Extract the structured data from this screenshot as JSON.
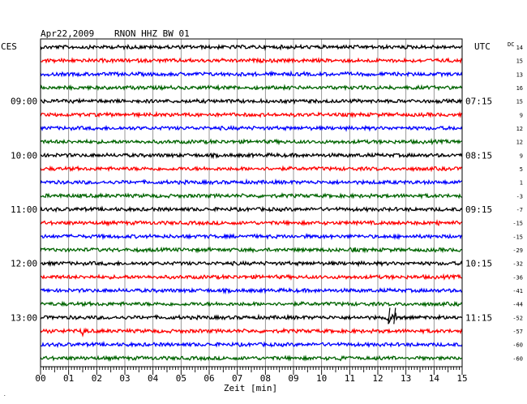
{
  "header": {
    "date": "Apr22,2009",
    "station": "RNON HHZ BW 01",
    "left_tz": "CES",
    "right_tz": "UTC",
    "dc_label": "DC"
  },
  "chart_data": {
    "type": "seismogram",
    "xlabel": "Zeit [min]",
    "xlim": [
      0,
      15
    ],
    "x_ticks": [
      "00",
      "01",
      "02",
      "03",
      "04",
      "05",
      "06",
      "07",
      "08",
      "09",
      "10",
      "11",
      "12",
      "13",
      "14",
      "15"
    ],
    "line_count": 24,
    "line_colors": [
      "#000000",
      "#ff0000",
      "#0000ff",
      "#006400"
    ],
    "left_hour_labels": [
      {
        "line": 4,
        "text": "09:00"
      },
      {
        "line": 8,
        "text": "10:00"
      },
      {
        "line": 12,
        "text": "11:00"
      },
      {
        "line": 16,
        "text": "12:00"
      },
      {
        "line": 20,
        "text": "13:00"
      }
    ],
    "right_hour_labels": [
      {
        "line": 4,
        "text": "07:15"
      },
      {
        "line": 8,
        "text": "08:15"
      },
      {
        "line": 12,
        "text": "09:15"
      },
      {
        "line": 16,
        "text": "10:15"
      },
      {
        "line": 20,
        "text": "11:15"
      }
    ],
    "dc_offsets": [
      14,
      15,
      13,
      16,
      15,
      9,
      12,
      12,
      9,
      5,
      1,
      -3,
      -7,
      -15,
      -15,
      -29,
      -32,
      -36,
      -41,
      -44,
      -52,
      -57,
      -60,
      -60
    ],
    "events": [
      {
        "line": 20,
        "minute": 12.4,
        "amplitude": 3
      },
      {
        "line": 20,
        "minute": 12.6,
        "amplitude": 3
      },
      {
        "line": 21,
        "minute": 1.5,
        "amplitude": 2.5
      },
      {
        "line": 13,
        "minute": 14.1,
        "amplitude": 1.8
      },
      {
        "line": 15,
        "minute": 11.1,
        "amplitude": 1.6
      },
      {
        "line": 23,
        "minute": 10.7,
        "amplitude": 1.4
      }
    ]
  }
}
